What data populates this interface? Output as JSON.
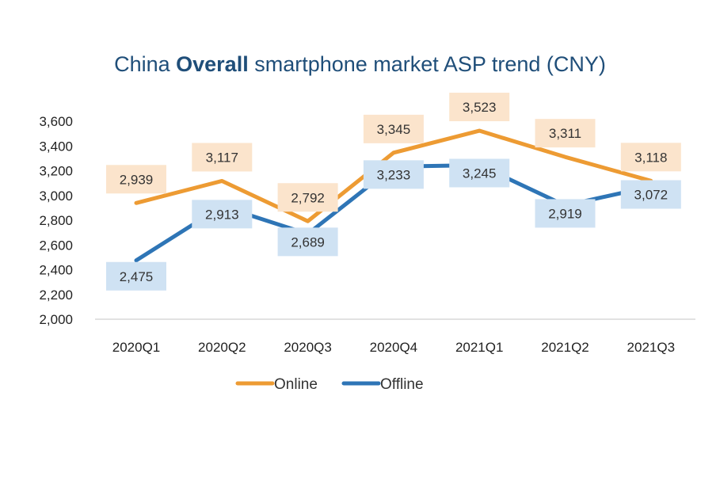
{
  "chart_data": {
    "type": "line",
    "title_prefix": "China ",
    "title_bold": "Overall",
    "title_suffix": " smartphone market ASP trend (CNY)",
    "categories": [
      "2020Q1",
      "2020Q2",
      "2020Q3",
      "2020Q4",
      "2021Q1",
      "2021Q2",
      "2021Q3"
    ],
    "series": [
      {
        "name": "Online",
        "color": "#ED9B33",
        "label_bg": "#FBE4CC",
        "values": [
          2939,
          3117,
          2792,
          3345,
          3523,
          3311,
          3118
        ],
        "labels": [
          "2,939",
          "3,117",
          "2,792",
          "3,345",
          "3,523",
          "3,311",
          "3,118"
        ]
      },
      {
        "name": "Offline",
        "color": "#2E75B6",
        "label_bg": "#CFE2F3",
        "values": [
          2475,
          2913,
          2689,
          3233,
          3245,
          2919,
          3072
        ],
        "labels": [
          "2,475",
          "2,913",
          "2,689",
          "3,233",
          "3,245",
          "2,919",
          "3,072"
        ]
      }
    ],
    "ylim": [
      2000,
      3600
    ],
    "yticks": [
      2000,
      2200,
      2400,
      2600,
      2800,
      3000,
      3200,
      3400,
      3600
    ],
    "ytick_labels": [
      "2,000",
      "2,200",
      "2,400",
      "2,600",
      "2,800",
      "3,000",
      "3,200",
      "3,400",
      "3,600"
    ],
    "grid": false,
    "legend_position": "bottom"
  }
}
